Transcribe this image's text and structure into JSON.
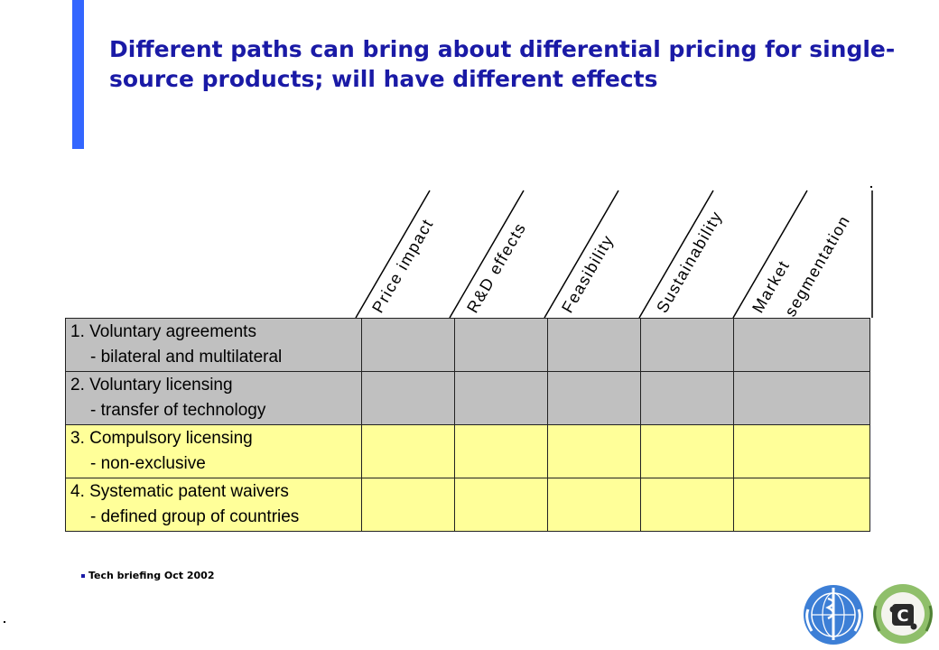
{
  "title": "Different paths can bring about differential pricing for single-source products; will have different effects",
  "columns": [
    {
      "line1": "Price impact",
      "line2": ""
    },
    {
      "line1": "R&D effects",
      "line2": ""
    },
    {
      "line1": "Feasibility",
      "line2": ""
    },
    {
      "line1": "Sustainability",
      "line2": ""
    },
    {
      "line1": "Market",
      "line2": "segmentation"
    }
  ],
  "rows": [
    {
      "title": "1.  Voluntary agreements",
      "sub": "- bilateral and multilateral",
      "color": "#c0c0c0"
    },
    {
      "title": "2.  Voluntary licensing",
      "sub": "- transfer of technology",
      "color": "#c0c0c0"
    },
    {
      "title": "3.  Compulsory licensing",
      "sub": "- non-exclusive",
      "color": "#ffff99"
    },
    {
      "title": "4.  Systematic patent waivers",
      "sub": "- defined group of countries",
      "color": "#ffff99"
    }
  ],
  "footer": "Tech briefing Oct 2002",
  "logos": [
    "who-emblem-icon",
    "partner-emblem-icon"
  ],
  "colors": {
    "accent": "#3366ff",
    "title": "#1a1aa6",
    "gray_row": "#c0c0c0",
    "yellow_row": "#ffff99"
  }
}
